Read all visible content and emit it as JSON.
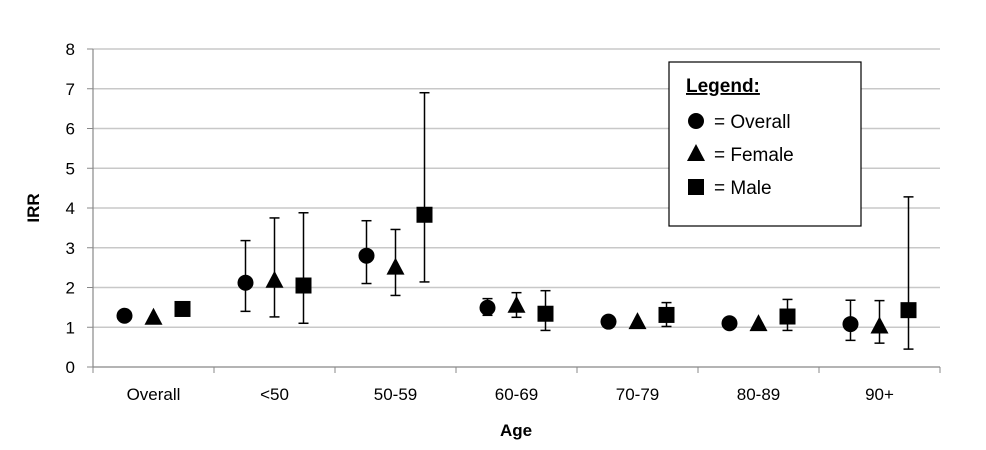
{
  "chart_data": {
    "type": "scatter",
    "title": "",
    "xlabel": "Age",
    "ylabel": "IRR",
    "ylim": [
      0,
      8
    ],
    "yticks": [
      "0",
      "1",
      "2",
      "3",
      "4",
      "5",
      "6",
      "7",
      "8"
    ],
    "categories": [
      "Overall",
      "<50",
      "50-59",
      "60-69",
      "70-79",
      "80-89",
      "90+"
    ],
    "grid": "horizontal",
    "legend_position": "top-right",
    "legend": {
      "title": "Legend:",
      "entries": [
        {
          "marker": "circle",
          "label": "= Overall"
        },
        {
          "marker": "triangle",
          "label": "= Female"
        },
        {
          "marker": "square",
          "label": "= Male"
        }
      ]
    },
    "series": [
      {
        "marker": "circle",
        "values": [
          1.29,
          2.12,
          2.8,
          1.49,
          1.14,
          1.1,
          1.08
        ],
        "lower": [
          null,
          1.4,
          2.1,
          1.3,
          null,
          null,
          0.67
        ],
        "upper": [
          null,
          3.18,
          3.68,
          1.72,
          null,
          null,
          1.68
        ]
      },
      {
        "marker": "triangle",
        "values": [
          1.24,
          2.17,
          2.5,
          1.54,
          1.13,
          1.08,
          1.02
        ],
        "lower": [
          null,
          1.26,
          1.8,
          1.25,
          null,
          null,
          0.6
        ],
        "upper": [
          null,
          3.75,
          3.46,
          1.87,
          null,
          null,
          1.67
        ]
      },
      {
        "marker": "square",
        "values": [
          1.46,
          2.05,
          3.83,
          1.34,
          1.31,
          1.27,
          1.43
        ],
        "lower": [
          1.33,
          1.1,
          2.14,
          0.92,
          1.02,
          0.92,
          0.45
        ],
        "upper": [
          1.6,
          3.88,
          6.9,
          1.92,
          1.62,
          1.7,
          4.28
        ]
      }
    ]
  }
}
